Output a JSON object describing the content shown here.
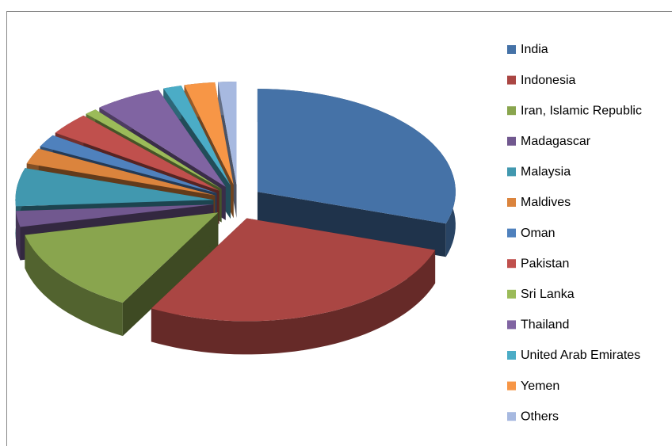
{
  "chart_data": {
    "type": "pie",
    "categories": [
      "India",
      "Indonesia",
      "Iran, Islamic Republic",
      "Madagascar",
      "Malaysia",
      "Maldives",
      "Oman",
      "Pakistan",
      "Sri Lanka",
      "Thailand",
      "United Arab Emirates",
      "Yemen",
      "Others"
    ],
    "values": [
      30,
      28,
      13.5,
      2.5,
      6,
      2.5,
      2,
      3.5,
      1,
      5.5,
      1.5,
      2.5,
      1.5
    ],
    "colors": [
      "#4572a7",
      "#aa4643",
      "#89a54e",
      "#71588f",
      "#4198af",
      "#db843d",
      "#4f81bd",
      "#c0504d",
      "#9bbb59",
      "#8064a2",
      "#4bacc6",
      "#f79646",
      "#a7b9e0"
    ],
    "legend": "right",
    "exploded": true,
    "three_d": true
  }
}
